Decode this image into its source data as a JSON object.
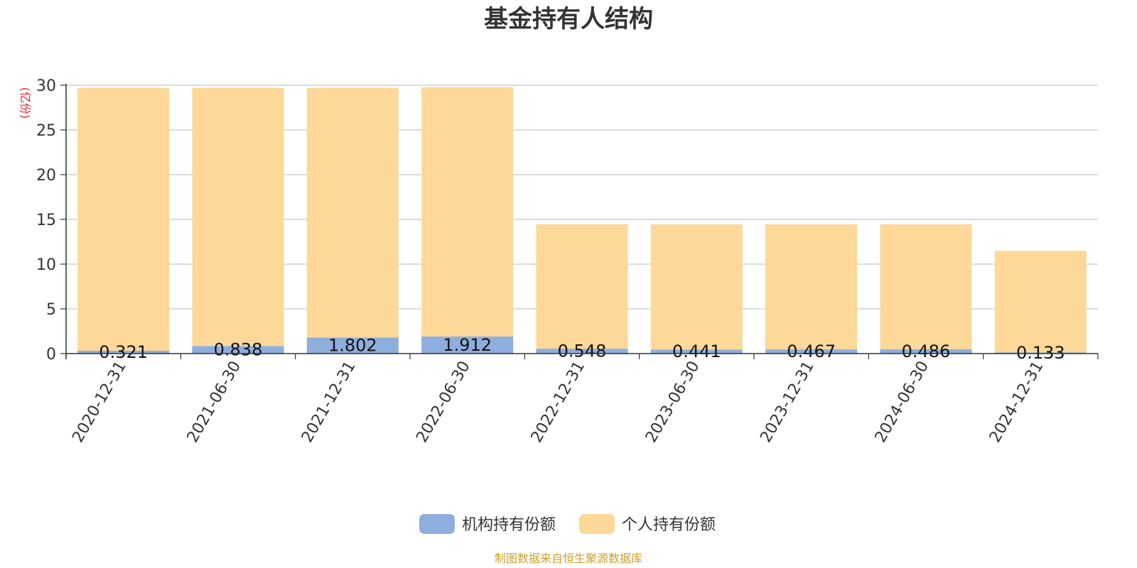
{
  "chart_data": {
    "type": "bar",
    "stacked": true,
    "title": "基金持有人结构",
    "ylabel": "(亿份)",
    "ylim": [
      0,
      30
    ],
    "yticks": [
      0,
      5,
      10,
      15,
      20,
      25,
      30
    ],
    "categories": [
      "2020-12-31",
      "2021-06-30",
      "2021-12-31",
      "2022-06-30",
      "2022-12-31",
      "2023-06-30",
      "2023-12-31",
      "2024-06-30",
      "2024-12-31"
    ],
    "series": [
      {
        "name": "机构持有份额",
        "color": "#8eaedd",
        "values": [
          0.321,
          0.838,
          1.802,
          1.912,
          0.548,
          0.441,
          0.467,
          0.486,
          0.133
        ],
        "labels": [
          "0.321",
          "0.838",
          "1.802",
          "1.912",
          "0.548",
          "0.441",
          "0.467",
          "0.486",
          "0.133"
        ]
      },
      {
        "name": "个人持有份额",
        "color": "#fdd898",
        "values": [
          29.38,
          28.86,
          27.9,
          27.87,
          13.91,
          14.0,
          13.98,
          13.96,
          11.36
        ]
      }
    ],
    "grid": true,
    "legend_position": "bottom-center",
    "source": "制图数据来自恒生聚源数据库"
  }
}
